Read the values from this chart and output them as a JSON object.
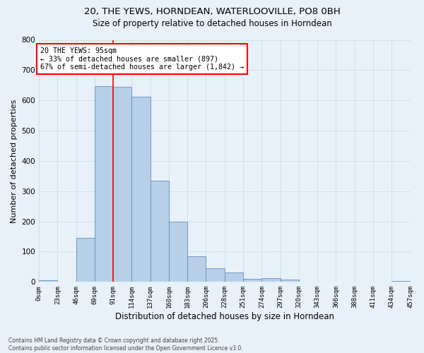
{
  "title_line1": "20, THE YEWS, HORNDEAN, WATERLOOVILLE, PO8 0BH",
  "title_line2": "Size of property relative to detached houses in Horndean",
  "xlabel": "Distribution of detached houses by size in Horndean",
  "ylabel": "Number of detached properties",
  "bar_values": [
    5,
    0,
    145,
    648,
    645,
    613,
    335,
    200,
    85,
    45,
    30,
    10,
    12,
    8,
    0,
    0,
    0,
    0,
    0,
    3
  ],
  "bin_labels": [
    "0sqm",
    "23sqm",
    "46sqm",
    "69sqm",
    "91sqm",
    "114sqm",
    "137sqm",
    "160sqm",
    "183sqm",
    "206sqm",
    "228sqm",
    "251sqm",
    "274sqm",
    "297sqm",
    "320sqm",
    "343sqm",
    "366sqm",
    "388sqm",
    "411sqm",
    "434sqm",
    "457sqm"
  ],
  "bar_color": "#b8cfe8",
  "bar_edge_color": "#6090c0",
  "grid_color": "#ccdde8",
  "bg_color": "#e8f0f8",
  "vline_x": 91,
  "annotation_text": "20 THE YEWS: 95sqm\n← 33% of detached houses are smaller (897)\n67% of semi-detached houses are larger (1,842) →",
  "annotation_box_color": "white",
  "annotation_border_color": "red",
  "vline_color": "red",
  "ylim": [
    0,
    800
  ],
  "yticks": [
    0,
    100,
    200,
    300,
    400,
    500,
    600,
    700,
    800
  ],
  "footnote": "Contains HM Land Registry data © Crown copyright and database right 2025.\nContains public sector information licensed under the Open Government Licence v3.0.",
  "bin_width": 23
}
